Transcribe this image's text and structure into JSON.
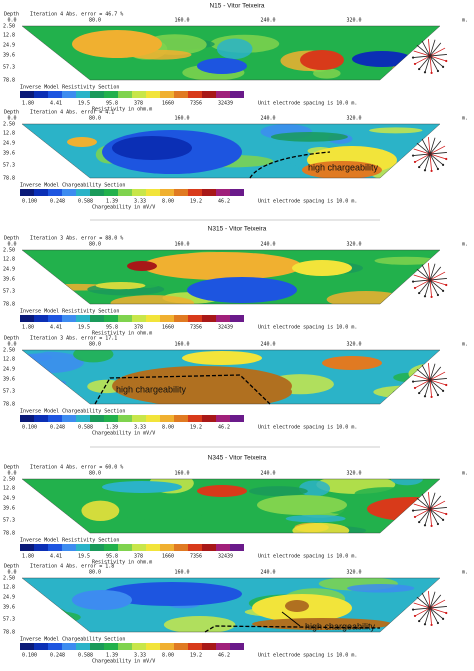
{
  "profiles": [
    {
      "title": "N15 - Vitor Teixeira",
      "panels": [
        {
          "depth": "Depth",
          "header": "Iteration 4 Abs. error = 46.7 %",
          "xticks": [
            "0.0",
            "80.0",
            "160.0",
            "240.0",
            "320.0"
          ],
          "xunit": "m.",
          "depths": [
            "2.50",
            "12.8",
            "24.9",
            "39.6",
            "57.3",
            "78.8"
          ],
          "section": "Inverse Model Resistivity Section",
          "scale": [
            "1.80",
            "4.41",
            "19.5",
            "95.8",
            "378",
            "1660",
            "7356",
            "32439"
          ],
          "unit": "Resistivity in ohm.m",
          "spacing": "Unit electrode spacing is 10.0 m."
        },
        {
          "depth": "Depth",
          "header": "Iteration 4 Abs. error = 4.1",
          "xticks": [
            "0.0",
            "80.0",
            "160.0",
            "240.0",
            "320.0"
          ],
          "xunit": "m.",
          "depths": [
            "2.50",
            "12.8",
            "24.9",
            "39.6",
            "57.3",
            "78.8"
          ],
          "section": "Inverse Model Chargeability Section",
          "scale": [
            "0.100",
            "0.248",
            "0.588",
            "1.39",
            "3.33",
            "8.00",
            "19.2",
            "46.2"
          ],
          "unit": "Chargeability in mV/V",
          "spacing": "Unit electrode spacing is 10.0 m.",
          "annotation": "high chargeability"
        }
      ]
    },
    {
      "title": "N315 - Vitor Teixeira",
      "panels": [
        {
          "depth": "Depth",
          "header": "Iteration 3 Abs. error = 88.0 %",
          "xticks": [
            "0.0",
            "80.0",
            "160.0",
            "240.0",
            "320.0"
          ],
          "xunit": "m.",
          "depths": [
            "2.50",
            "12.8",
            "24.9",
            "39.6",
            "57.3",
            "78.8"
          ],
          "section": "Inverse Model Resistivity Section",
          "scale": [
            "1.80",
            "4.41",
            "19.5",
            "95.8",
            "378",
            "1660",
            "7356",
            "32439"
          ],
          "unit": "Resistivity in ohm.m",
          "spacing": "Unit electrode spacing is 10.0 m."
        },
        {
          "depth": "Depth",
          "header": "Iteration 3 Abs. error = 17.1",
          "xticks": [
            "0.0",
            "80.0",
            "160.0",
            "240.0",
            "320.0"
          ],
          "xunit": "m.",
          "depths": [
            "2.50",
            "12.8",
            "24.9",
            "39.6",
            "57.3",
            "78.8"
          ],
          "section": "Inverse Model Chargeability Section",
          "scale": [
            "0.100",
            "0.248",
            "0.588",
            "1.39",
            "3.33",
            "8.00",
            "19.2",
            "46.2"
          ],
          "unit": "Chargeability in mV/V",
          "spacing": "Unit electrode spacing is 10.0 m.",
          "annotation": "high chargeability"
        }
      ]
    },
    {
      "title": "N345 - Vitor Teixeira",
      "panels": [
        {
          "depth": "Depth",
          "header": "Iteration 4 Abs. error = 60.0 %",
          "xticks": [
            "0.0",
            "80.0",
            "160.0",
            "240.0",
            "320.0"
          ],
          "xunit": "m.",
          "depths": [
            "2.50",
            "12.8",
            "24.9",
            "39.6",
            "57.3",
            "78.8"
          ],
          "section": "Inverse Model Resistivity Section",
          "scale": [
            "1.80",
            "4.41",
            "19.5",
            "95.8",
            "378",
            "1660",
            "7356",
            "32439"
          ],
          "unit": "Resistivity in ohm.m",
          "spacing": "Unit electrode spacing is 10.0 m."
        },
        {
          "depth": "Depth",
          "header": "Iteration 4 Abs. error = 1.8",
          "xticks": [
            "0.0",
            "80.0",
            "160.0",
            "240.0",
            "320.0"
          ],
          "xunit": "m.",
          "depths": [
            "2.50",
            "12.8",
            "24.9",
            "39.6",
            "57.3",
            "78.8"
          ],
          "section": "Inverse Model Chargeability Section",
          "scale": [
            "0.100",
            "0.248",
            "0.588",
            "1.39",
            "3.33",
            "8.00",
            "19.2",
            "46.2"
          ],
          "unit": "Chargeability in mV/V",
          "spacing": "Unit electrode spacing is 10.0 m.",
          "annotation": "high chargeability"
        }
      ]
    }
  ]
}
